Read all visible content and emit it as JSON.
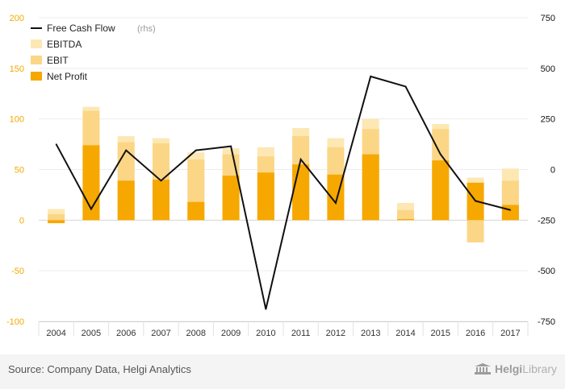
{
  "chart_data": {
    "type": "bar+line",
    "categories": [
      "2004",
      "2005",
      "2006",
      "2007",
      "2008",
      "2009",
      "2010",
      "2011",
      "2012",
      "2013",
      "2014",
      "2015",
      "2016",
      "2017"
    ],
    "series": [
      {
        "name": "EBITDA",
        "axis": "left",
        "color": "#fde8b4",
        "values": [
          11,
          112,
          83,
          81,
          67,
          71,
          72,
          91,
          81,
          100,
          17,
          95,
          42,
          51
        ]
      },
      {
        "name": "EBIT",
        "axis": "left",
        "color": "#fbd686",
        "values": [
          6,
          108,
          77,
          76,
          60,
          65,
          63,
          83,
          72,
          90,
          10,
          90,
          -22,
          39
        ]
      },
      {
        "name": "Net Profit",
        "axis": "left",
        "color": "#f6a800",
        "values": [
          -3,
          74,
          39,
          40,
          18,
          44,
          47,
          55,
          45,
          65,
          1,
          59,
          37,
          15
        ]
      },
      {
        "name": "Free Cash Flow",
        "unit_note": "(rhs)",
        "axis": "right",
        "color": "#111111",
        "values": [
          125,
          -195,
          95,
          -55,
          95,
          115,
          -690,
          50,
          -165,
          460,
          410,
          75,
          -155,
          -200
        ]
      }
    ],
    "left_axis": {
      "min": -100,
      "max": 200,
      "ticks": [
        "200",
        "150",
        "100",
        "50",
        "0",
        "-50",
        "-100"
      ]
    },
    "right_axis": {
      "min": -750,
      "max": 750,
      "ticks": [
        "750",
        "500",
        "250",
        "0",
        "-250",
        "-500",
        "-750"
      ]
    },
    "grid": true,
    "legend_position": "top-left"
  },
  "legend": {
    "fcf_label": "Free Cash Flow",
    "fcf_unit": "(rhs)",
    "ebitda_label": "EBITDA",
    "ebit_label": "EBIT",
    "net_profit_label": "Net Profit"
  },
  "footer": {
    "source": "Source: Company Data, Helgi Analytics",
    "brand_bold": "Helgi",
    "brand_light": "Library"
  }
}
